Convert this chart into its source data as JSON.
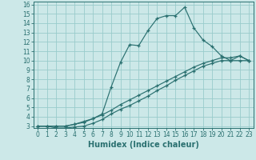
{
  "xlabel": "Humidex (Indice chaleur)",
  "background_color": "#cce8e8",
  "line_color": "#2a7070",
  "grid_color": "#99cccc",
  "xlim": [
    -0.5,
    23.5
  ],
  "ylim": [
    2.8,
    16.3
  ],
  "xticks": [
    0,
    1,
    2,
    3,
    4,
    5,
    6,
    7,
    8,
    9,
    10,
    11,
    12,
    13,
    14,
    15,
    16,
    17,
    18,
    19,
    20,
    21,
    22,
    23
  ],
  "yticks": [
    3,
    4,
    5,
    6,
    7,
    8,
    9,
    10,
    11,
    12,
    13,
    14,
    15,
    16
  ],
  "line1_x": [
    0,
    1,
    2,
    3,
    4,
    5,
    6,
    7,
    8,
    9,
    10,
    11,
    12,
    13,
    14,
    15,
    16,
    17,
    18,
    19,
    20,
    21,
    22,
    23
  ],
  "line1_y": [
    3.0,
    3.0,
    2.8,
    2.8,
    2.9,
    3.0,
    3.3,
    3.7,
    4.3,
    4.8,
    5.2,
    5.7,
    6.2,
    6.8,
    7.3,
    7.9,
    8.4,
    8.9,
    9.4,
    9.7,
    10.0,
    10.0,
    10.0,
    10.0
  ],
  "line2_x": [
    0,
    1,
    2,
    3,
    4,
    5,
    6,
    7,
    8,
    9,
    10,
    11,
    12,
    13,
    14,
    15,
    16,
    17,
    18,
    19,
    20,
    21,
    22,
    23
  ],
  "line2_y": [
    3.0,
    3.0,
    3.0,
    3.0,
    3.2,
    3.5,
    3.8,
    4.2,
    4.7,
    5.3,
    5.8,
    6.3,
    6.8,
    7.3,
    7.8,
    8.3,
    8.8,
    9.3,
    9.7,
    10.0,
    10.3,
    10.3,
    10.5,
    10.0
  ],
  "line3_x": [
    0,
    1,
    2,
    3,
    4,
    5,
    6,
    7,
    8,
    9,
    10,
    11,
    12,
    13,
    14,
    15,
    16,
    17,
    18,
    19,
    20,
    21,
    22,
    23
  ],
  "line3_y": [
    3.0,
    3.0,
    3.0,
    3.0,
    3.2,
    3.4,
    3.8,
    4.3,
    7.2,
    9.8,
    11.7,
    11.6,
    13.2,
    14.5,
    14.8,
    14.8,
    15.7,
    13.5,
    12.2,
    11.5,
    10.5,
    10.0,
    10.5,
    10.0
  ],
  "xlabel_fontsize": 7,
  "tick_fontsize": 5.5
}
